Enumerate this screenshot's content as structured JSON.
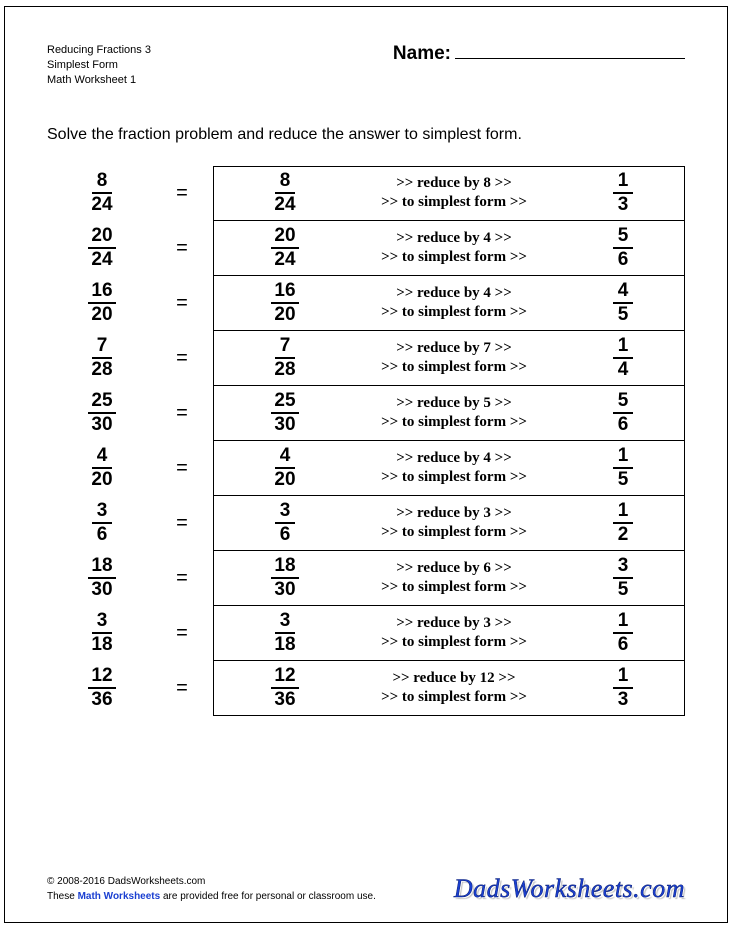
{
  "header": {
    "line1": "Reducing Fractions 3",
    "line2": "Simplest Form",
    "line3": "Math Worksheet 1",
    "name_label": "Name:"
  },
  "instructions": "Solve the fraction problem and reduce the answer to simplest form.",
  "eq": "=",
  "reduce_prefix": ">> reduce by ",
  "reduce_suffix": " >>",
  "simplest": ">> to simplest form >>",
  "problems": [
    {
      "n": "8",
      "d": "24",
      "by": "8",
      "rn": "1",
      "rd": "3"
    },
    {
      "n": "20",
      "d": "24",
      "by": "4",
      "rn": "5",
      "rd": "6"
    },
    {
      "n": "16",
      "d": "20",
      "by": "4",
      "rn": "4",
      "rd": "5"
    },
    {
      "n": "7",
      "d": "28",
      "by": "7",
      "rn": "1",
      "rd": "4"
    },
    {
      "n": "25",
      "d": "30",
      "by": "5",
      "rn": "5",
      "rd": "6"
    },
    {
      "n": "4",
      "d": "20",
      "by": "4",
      "rn": "1",
      "rd": "5"
    },
    {
      "n": "3",
      "d": "6",
      "by": "3",
      "rn": "1",
      "rd": "2"
    },
    {
      "n": "18",
      "d": "30",
      "by": "6",
      "rn": "3",
      "rd": "5"
    },
    {
      "n": "3",
      "d": "18",
      "by": "3",
      "rn": "1",
      "rd": "6"
    },
    {
      "n": "12",
      "d": "36",
      "by": "12",
      "rn": "1",
      "rd": "3"
    }
  ],
  "footer": {
    "copyright": "© 2008-2016 DadsWorksheets.com",
    "these": "These ",
    "mw": "Math Worksheets",
    "rest": " are provided free for personal or classroom use.",
    "logo": "DadsWorksheets.com"
  },
  "colors": {
    "link": "#1a3fd1",
    "border": "#000000",
    "bg": "#ffffff"
  }
}
